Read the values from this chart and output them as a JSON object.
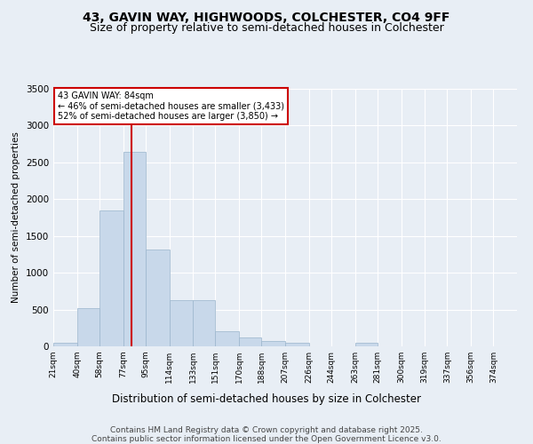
{
  "title": "43, GAVIN WAY, HIGHWOODS, COLCHESTER, CO4 9FF",
  "subtitle": "Size of property relative to semi-detached houses in Colchester",
  "xlabel": "Distribution of semi-detached houses by size in Colchester",
  "ylabel": "Number of semi-detached properties",
  "bar_color": "#c8d8ea",
  "bar_edge_color": "#9ab5cc",
  "background_color": "#e8eef5",
  "grid_color": "#ffffff",
  "annotation_box_color": "#cc0000",
  "vline_color": "#cc0000",
  "vline_x": 84,
  "annotation_title": "43 GAVIN WAY: 84sqm",
  "annotation_line1": "← 46% of semi-detached houses are smaller (3,433)",
  "annotation_line2": "52% of semi-detached houses are larger (3,850) →",
  "bin_edges": [
    21,
    40,
    58,
    77,
    95,
    114,
    133,
    151,
    170,
    188,
    207,
    226,
    244,
    263,
    281,
    300,
    319,
    337,
    356,
    374,
    393
  ],
  "bar_heights": [
    50,
    520,
    1850,
    2640,
    1320,
    630,
    630,
    200,
    120,
    70,
    50,
    5,
    5,
    50,
    5,
    5,
    3,
    2,
    2,
    2
  ],
  "ylim": [
    0,
    3500
  ],
  "yticks": [
    0,
    500,
    1000,
    1500,
    2000,
    2500,
    3000,
    3500
  ],
  "footer_line1": "Contains HM Land Registry data © Crown copyright and database right 2025.",
  "footer_line2": "Contains public sector information licensed under the Open Government Licence v3.0.",
  "title_fontsize": 10,
  "subtitle_fontsize": 9,
  "tick_label_fontsize": 6.5,
  "ylabel_fontsize": 7.5,
  "xlabel_fontsize": 8.5,
  "footer_fontsize": 6.5
}
